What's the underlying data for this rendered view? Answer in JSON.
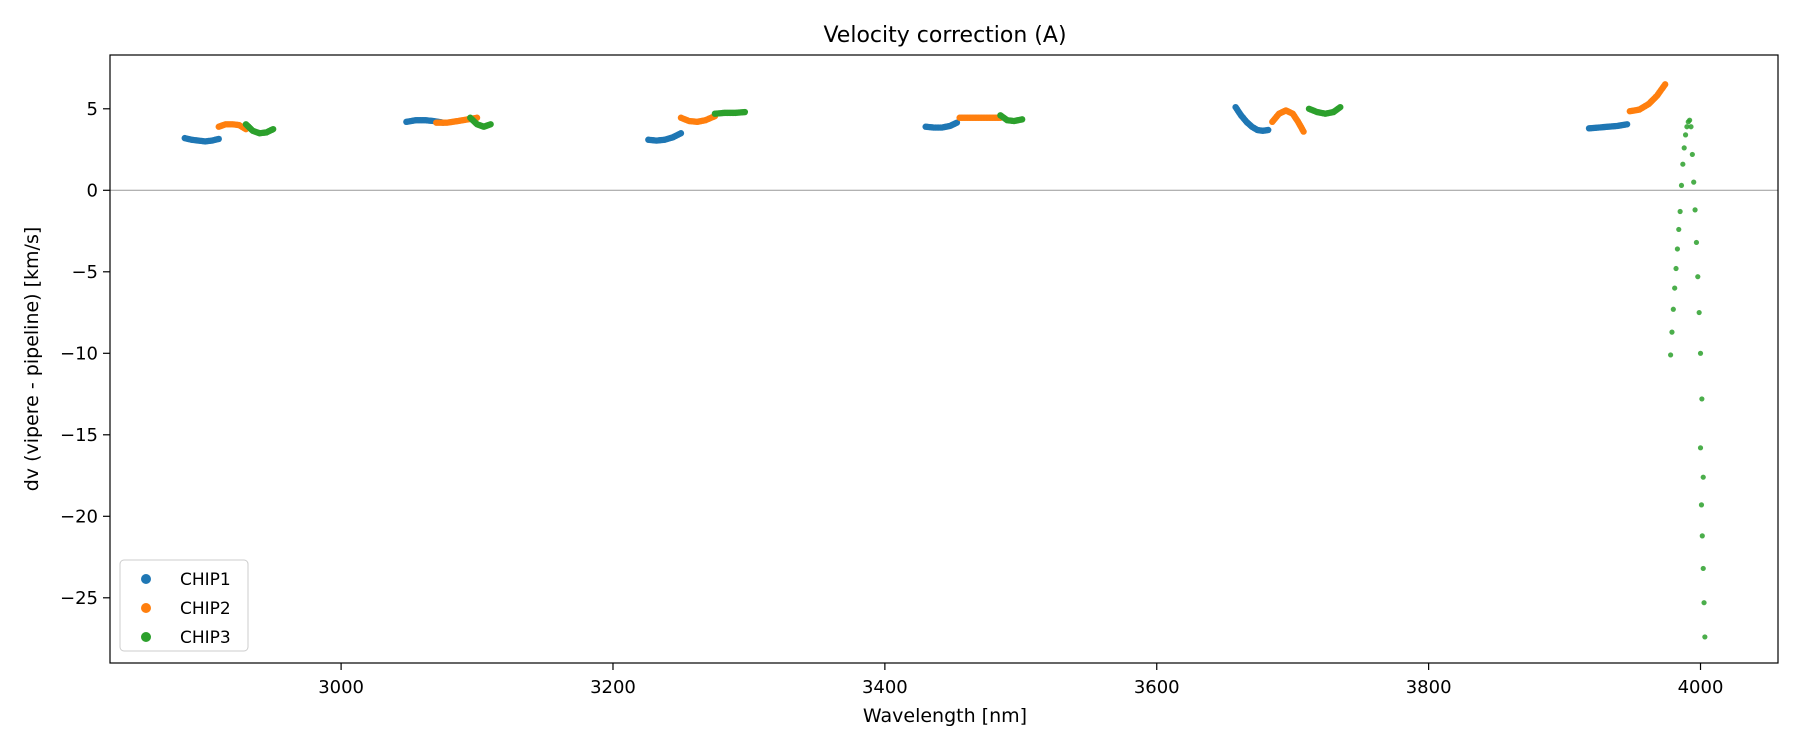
{
  "chart_data": {
    "type": "scatter",
    "title": "Velocity correction (A)",
    "xlabel": "Wavelength [nm]",
    "ylabel": "dv (vipere - pipeline) [km/s]",
    "xlim": [
      2830,
      4057
    ],
    "ylim": [
      -29,
      8.3
    ],
    "xticks": [
      3000,
      3200,
      3400,
      3600,
      3800,
      4000
    ],
    "yticks": [
      5,
      0,
      -5,
      -10,
      -15,
      -20,
      -25
    ],
    "reference_line_y": 0,
    "legend_position": "lower-left",
    "colors": {
      "CHIP1": "#1f77b4",
      "CHIP2": "#ff7f0e",
      "CHIP3": "#2ca02c",
      "zero_line": "#999999"
    },
    "series": [
      {
        "name": "CHIP1",
        "color": "#1f77b4",
        "segments": [
          {
            "x": [
              2885,
              2890,
              2895,
              2900,
              2905,
              2910
            ],
            "y": [
              3.2,
              3.1,
              3.05,
              3.0,
              3.05,
              3.15
            ]
          },
          {
            "x": [
              3048,
              3055,
              3062,
              3068,
              3075
            ],
            "y": [
              4.2,
              4.3,
              4.3,
              4.25,
              4.15
            ]
          },
          {
            "x": [
              3226,
              3232,
              3238,
              3244,
              3250
            ],
            "y": [
              3.1,
              3.05,
              3.1,
              3.25,
              3.5
            ]
          },
          {
            "x": [
              3430,
              3436,
              3442,
              3448,
              3453
            ],
            "y": [
              3.9,
              3.85,
              3.85,
              3.95,
              4.15
            ]
          },
          {
            "x": [
              3658,
              3662,
              3666,
              3670,
              3674,
              3678,
              3682
            ],
            "y": [
              5.1,
              4.6,
              4.2,
              3.9,
              3.7,
              3.65,
              3.7
            ]
          },
          {
            "x": [
              3918,
              3925,
              3932,
              3939,
              3946
            ],
            "y": [
              3.8,
              3.85,
              3.9,
              3.95,
              4.05
            ]
          }
        ]
      },
      {
        "name": "CHIP2",
        "color": "#ff7f0e",
        "segments": [
          {
            "x": [
              2910,
              2915,
              2920,
              2925,
              2930
            ],
            "y": [
              3.9,
              4.05,
              4.05,
              4.0,
              3.75
            ]
          },
          {
            "x": [
              3070,
              3078,
              3086,
              3093,
              3100
            ],
            "y": [
              4.15,
              4.15,
              4.25,
              4.35,
              4.45
            ]
          },
          {
            "x": [
              3250,
              3256,
              3262,
              3268,
              3275
            ],
            "y": [
              4.45,
              4.25,
              4.2,
              4.3,
              4.55
            ]
          },
          {
            "x": [
              3455,
              3462,
              3470,
              3478,
              3485
            ],
            "y": [
              4.45,
              4.45,
              4.45,
              4.45,
              4.45
            ]
          },
          {
            "x": [
              3685,
              3690,
              3695,
              3700,
              3704,
              3708
            ],
            "y": [
              4.2,
              4.7,
              4.9,
              4.7,
              4.2,
              3.6
            ]
          },
          {
            "x": [
              3948,
              3955,
              3962,
              3968,
              3974
            ],
            "y": [
              4.85,
              4.95,
              5.3,
              5.8,
              6.5
            ]
          }
        ]
      },
      {
        "name": "CHIP3",
        "color": "#2ca02c",
        "segments": [
          {
            "x": [
              2930,
              2935,
              2940,
              2945,
              2950
            ],
            "y": [
              4.05,
              3.65,
              3.5,
              3.55,
              3.75
            ]
          },
          {
            "x": [
              3095,
              3100,
              3105,
              3110
            ],
            "y": [
              4.45,
              4.05,
              3.9,
              4.05
            ]
          },
          {
            "x": [
              3275,
              3282,
              3290,
              3297
            ],
            "y": [
              4.7,
              4.75,
              4.75,
              4.8
            ]
          },
          {
            "x": [
              3485,
              3490,
              3495,
              3501
            ],
            "y": [
              4.6,
              4.3,
              4.25,
              4.35
            ]
          },
          {
            "x": [
              3712,
              3718,
              3724,
              3730,
              3735
            ],
            "y": [
              5.0,
              4.8,
              4.7,
              4.8,
              5.1
            ]
          },
          {
            "x": [
              3978,
              3979,
              3980,
              3981,
              3982,
              3983,
              3984,
              3985,
              3986,
              3987,
              3988,
              3989,
              3990,
              3991,
              3992,
              3993,
              3994,
              3995,
              3996,
              3997,
              3998,
              3999,
              4000,
              4001,
              4002
            ],
            "y": [
              -10.1,
              -8.7,
              -7.3,
              -6.0,
              -4.8,
              -3.6,
              -2.4,
              -1.3,
              0.3,
              1.6,
              2.6,
              3.4,
              3.9,
              4.2,
              4.3,
              3.9,
              2.2,
              0.5,
              -1.2,
              -3.2,
              -5.3,
              -7.5,
              -10.0,
              -12.8,
              -17.6
            ]
          },
          {
            "x": [
              4000,
              4000.7,
              4001.3,
              4002,
              4002.6,
              4003.2
            ],
            "y": [
              -15.8,
              -19.3,
              -21.2,
              -23.2,
              -25.3,
              -27.4
            ]
          }
        ]
      }
    ]
  }
}
